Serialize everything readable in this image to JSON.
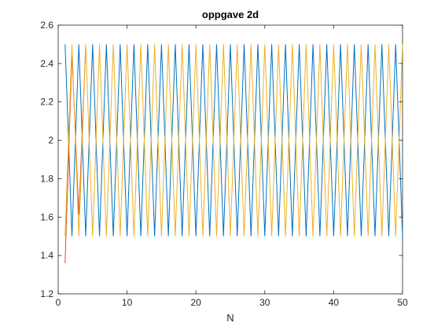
{
  "chart_data": {
    "type": "line",
    "title": "oppgave 2d",
    "xlabel": "N",
    "ylabel": "",
    "xlim": [
      0,
      50
    ],
    "ylim": [
      1.2,
      2.6
    ],
    "xticks": [
      0,
      10,
      20,
      30,
      40,
      50
    ],
    "yticks": [
      1.2,
      1.4,
      1.6,
      1.8,
      2,
      2.2,
      2.4,
      2.6
    ],
    "xtick_labels": [
      "0",
      "10",
      "20",
      "30",
      "40",
      "50"
    ],
    "ytick_labels": [
      "1.2",
      "1.4",
      "1.6",
      "1.8",
      "2",
      "2.2",
      "2.4",
      "2.6"
    ],
    "grid": false,
    "legend": "none",
    "series": [
      {
        "color": "#0072BD",
        "x": [
          1,
          2,
          3,
          4,
          5,
          6,
          7,
          8,
          9,
          10,
          11,
          12,
          13,
          14,
          15,
          16,
          17,
          18,
          19,
          20,
          21,
          22,
          23,
          24,
          25,
          26,
          27,
          28,
          29,
          30,
          31,
          32,
          33,
          34,
          35,
          36,
          37,
          38,
          39,
          40,
          41,
          42,
          43,
          44,
          45,
          46,
          47,
          48,
          49,
          50
        ],
        "y": [
          2.5,
          1.5,
          2.5,
          1.5,
          2.5,
          1.5,
          2.5,
          1.5,
          2.5,
          1.5,
          2.5,
          1.5,
          2.5,
          1.5,
          2.5,
          1.5,
          2.5,
          1.5,
          2.5,
          1.5,
          2.5,
          1.5,
          2.5,
          1.5,
          2.5,
          1.5,
          2.5,
          1.5,
          2.5,
          1.5,
          2.5,
          1.5,
          2.5,
          1.5,
          2.5,
          1.5,
          2.5,
          1.5,
          2.5,
          1.5,
          2.5,
          1.5,
          2.5,
          1.5,
          2.5,
          1.5,
          2.5,
          1.5,
          2.5,
          1.5
        ]
      },
      {
        "color": "#D95319",
        "x": [
          1,
          2,
          3,
          4
        ],
        "y": [
          1.36,
          2.45,
          1.61,
          2.5
        ]
      },
      {
        "color": "#EDB120",
        "x": [
          1,
          2,
          3,
          4,
          5,
          6,
          7,
          8,
          9,
          10,
          11,
          12,
          13,
          14,
          15,
          16,
          17,
          18,
          19,
          20,
          21,
          22,
          23,
          24,
          25,
          26,
          27,
          28,
          29,
          30,
          31,
          32,
          33,
          34,
          35,
          36,
          37,
          38,
          39,
          40,
          41,
          42,
          43,
          44,
          45,
          46,
          47,
          48,
          49,
          50
        ],
        "y": [
          1.5,
          2.5,
          1.5,
          2.5,
          1.5,
          2.5,
          1.5,
          2.5,
          1.5,
          2.5,
          1.5,
          2.5,
          1.5,
          2.5,
          1.5,
          2.5,
          1.5,
          2.5,
          1.5,
          2.5,
          1.5,
          2.5,
          1.5,
          2.5,
          1.5,
          2.5,
          1.5,
          2.5,
          1.5,
          2.5,
          1.5,
          2.5,
          1.5,
          2.5,
          1.5,
          2.5,
          1.5,
          2.5,
          1.5,
          2.5,
          1.5,
          2.5,
          1.5,
          2.5,
          1.5,
          2.5,
          1.5,
          2.5,
          1.5,
          2.5
        ]
      }
    ]
  }
}
